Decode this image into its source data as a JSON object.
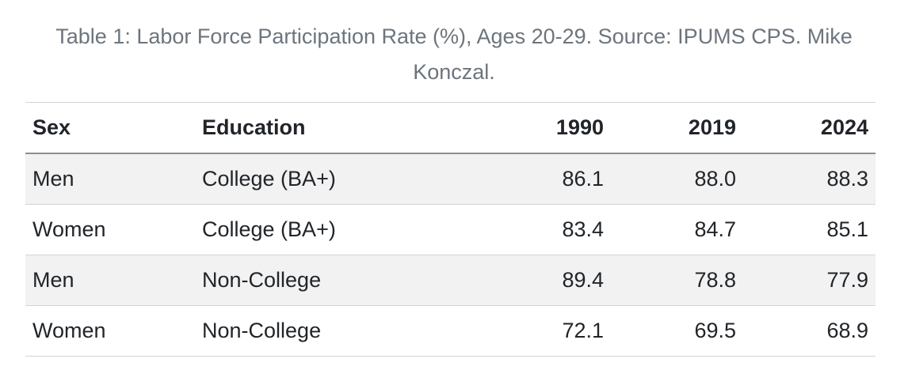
{
  "caption": "Table 1: Labor Force Participation Rate (%), Ages 20-29. Source: IPUMS CPS. Mike Konczal.",
  "columns": [
    "Sex",
    "Education",
    "1990",
    "2019",
    "2024"
  ],
  "rows": [
    [
      "Men",
      "College (BA+)",
      "86.1",
      "88.0",
      "88.3"
    ],
    [
      "Women",
      "College (BA+)",
      "83.4",
      "84.7",
      "85.1"
    ],
    [
      "Men",
      "Non-College",
      "89.4",
      "78.8",
      "77.9"
    ],
    [
      "Women",
      "Non-College",
      "72.1",
      "69.5",
      "68.9"
    ]
  ],
  "colors": {
    "caption": "#6c757d",
    "stripe": "#f2f2f2",
    "rule": "#d4d4d4",
    "header_rule": "#8e8e8e"
  }
}
